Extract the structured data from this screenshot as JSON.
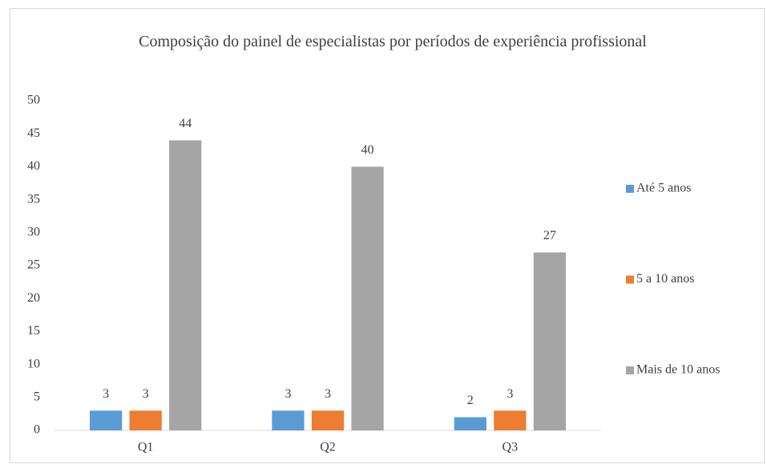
{
  "chart_data": {
    "type": "bar",
    "title": "Composição do painel de especialistas por períodos de experiência profissional",
    "categories": [
      "Q1",
      "Q2",
      "Q3"
    ],
    "series": [
      {
        "name": "Até 5 anos",
        "color": "#5b9bd5",
        "values": [
          3,
          3,
          2
        ]
      },
      {
        "name": "5 a 10 anos",
        "color": "#ed7d31",
        "values": [
          3,
          3,
          3
        ]
      },
      {
        "name": "Mais de 10 anos",
        "color": "#a5a5a5",
        "values": [
          44,
          40,
          27
        ]
      }
    ],
    "ylim": [
      0,
      50
    ],
    "yticks": [
      0,
      5,
      10,
      15,
      20,
      25,
      30,
      35,
      40,
      45,
      50
    ],
    "grid": false,
    "legend": "right"
  }
}
